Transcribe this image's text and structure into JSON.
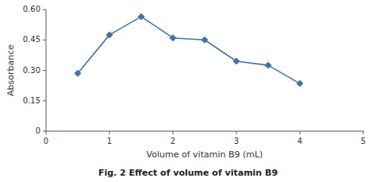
{
  "chart_data": {
    "type": "line",
    "x": [
      0.5,
      1.0,
      1.5,
      2.0,
      2.5,
      3.0,
      3.5,
      4.0
    ],
    "values": [
      0.285,
      0.475,
      0.565,
      0.46,
      0.45,
      0.345,
      0.325,
      0.235
    ],
    "color": "#4472a8",
    "marker": "diamond",
    "xlabel": "Volume of vitamin B9 (mL)",
    "ylabel": "Absorbance",
    "caption": "Fig. 2 Effect of volume of vitamin B9",
    "xlim": [
      0,
      5
    ],
    "ylim": [
      0,
      0.6
    ],
    "xticks": [
      0,
      1,
      2,
      3,
      4,
      5
    ],
    "yticks": [
      0,
      0.15,
      {
        "value": 0.3,
        "label": "0.30"
      },
      0.45,
      {
        "value": 0.6,
        "label": "0.60"
      }
    ],
    "grid": false
  }
}
